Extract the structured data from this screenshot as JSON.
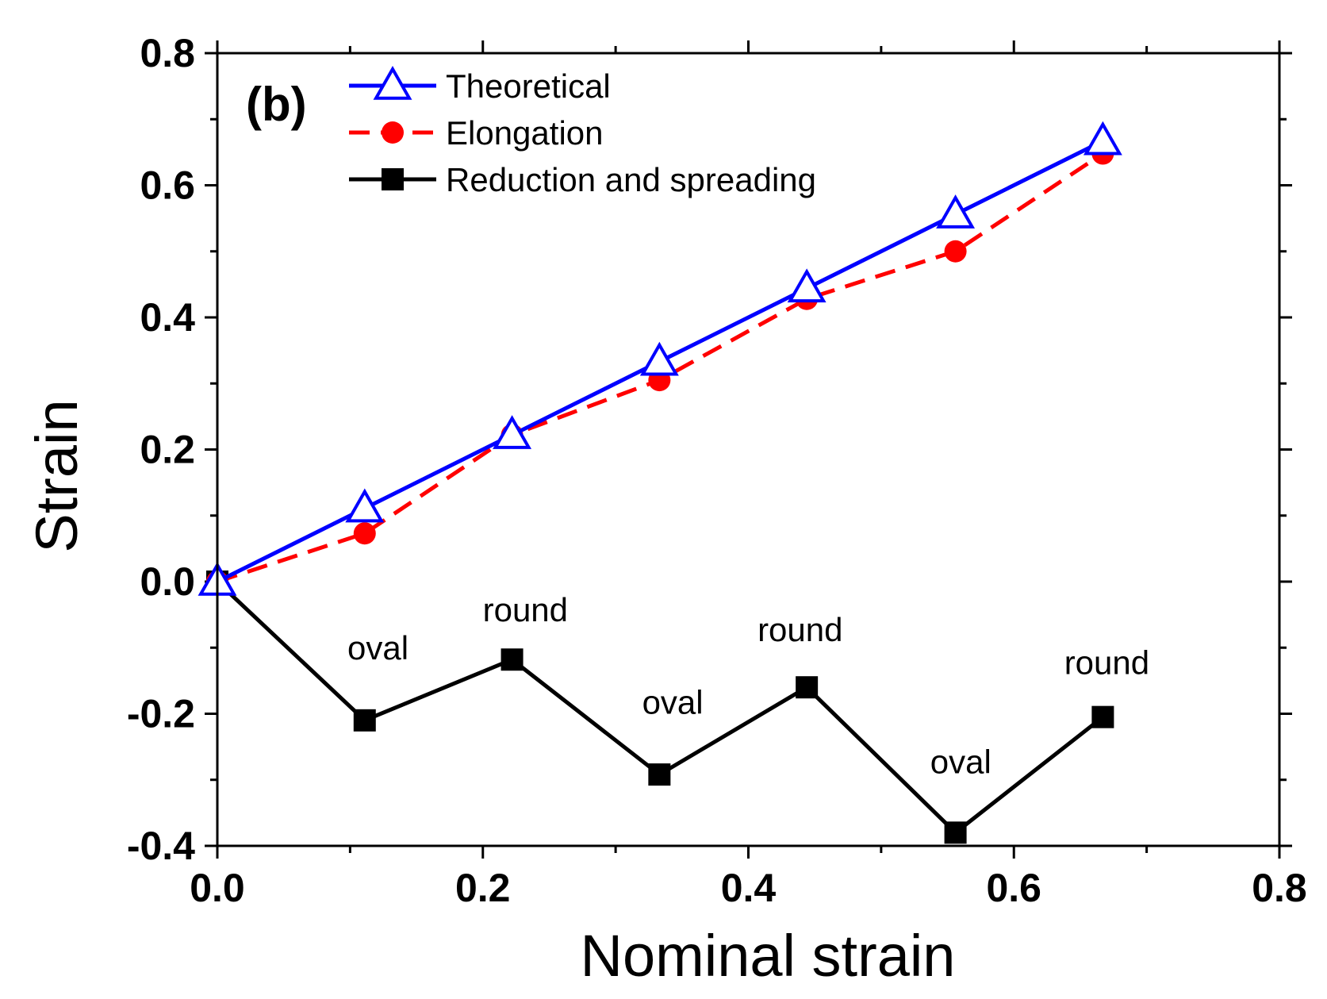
{
  "chart_data": {
    "type": "line",
    "panel_label": "(b)",
    "xlabel": "Nominal strain",
    "ylabel": "Strain",
    "xlim": [
      0.0,
      0.8
    ],
    "ylim": [
      -0.4,
      0.8
    ],
    "x_ticks": [
      0.0,
      0.2,
      0.4,
      0.6,
      0.8
    ],
    "x_tick_labels": [
      "0.0",
      "0.2",
      "0.4",
      "0.6",
      "0.8"
    ],
    "y_ticks": [
      -0.4,
      -0.2,
      0.0,
      0.2,
      0.4,
      0.6,
      0.8
    ],
    "y_tick_labels": [
      "-0.4",
      "-0.2",
      "0.0",
      "0.2",
      "0.4",
      "0.6",
      "0.8"
    ],
    "x_minor_step": 0.1,
    "y_minor_step": 0.1,
    "grid": false,
    "legend_position": "top-left",
    "series": [
      {
        "name": "Theoretical",
        "color": "#0000ff",
        "marker": "triangle-open",
        "line_style": "solid",
        "x": [
          0.0,
          0.111,
          0.222,
          0.333,
          0.444,
          0.556,
          0.667
        ],
        "y": [
          0.0,
          0.111,
          0.222,
          0.333,
          0.444,
          0.556,
          0.667
        ]
      },
      {
        "name": "Elongation",
        "color": "#ff0000",
        "marker": "circle-filled",
        "line_style": "dashed",
        "x": [
          0.0,
          0.111,
          0.222,
          0.333,
          0.444,
          0.556,
          0.667
        ],
        "y": [
          0.0,
          0.073,
          0.222,
          0.305,
          0.428,
          0.5,
          0.648
        ]
      },
      {
        "name": "Reduction and spreading",
        "color": "#000000",
        "marker": "square-filled",
        "line_style": "solid",
        "x": [
          0.0,
          0.111,
          0.222,
          0.333,
          0.444,
          0.556,
          0.667
        ],
        "y": [
          0.0,
          -0.21,
          -0.118,
          -0.292,
          -0.16,
          -0.38,
          -0.205
        ]
      }
    ],
    "annotations": [
      {
        "text": "oval",
        "x": 0.121,
        "y": -0.118
      },
      {
        "text": "round",
        "x": 0.232,
        "y": -0.06
      },
      {
        "text": "oval",
        "x": 0.343,
        "y": -0.2
      },
      {
        "text": "round",
        "x": 0.439,
        "y": -0.09
      },
      {
        "text": "oval",
        "x": 0.56,
        "y": -0.29
      },
      {
        "text": "round",
        "x": 0.67,
        "y": -0.14
      }
    ]
  }
}
